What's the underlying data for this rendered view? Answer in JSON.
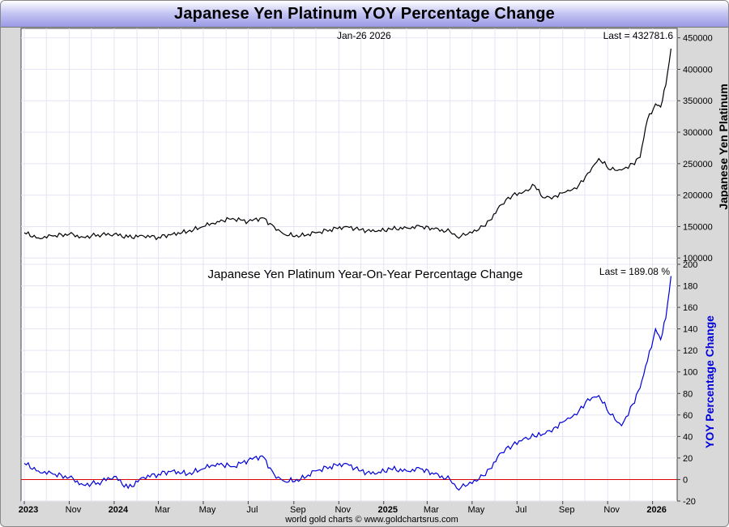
{
  "title": "Japanese Yen Platinum YOY Percentage Change",
  "footer": "world gold charts © www.goldchartsrus.com",
  "colors": {
    "price_line": "#000000",
    "yoy_line": "#0000dd",
    "zero_line": "#dd0000",
    "yoy_axis_label": "#0000dd",
    "grid": "#e4e4f4",
    "title_grad_end": "#9a9ae6"
  },
  "chart_data": [
    {
      "type": "line",
      "title": "",
      "date_label": "Jan-26  2026",
      "last_label": "Last = 432781.6",
      "ylabel": "Japanese Yen Platinum",
      "xlabel": "",
      "ylim": [
        90000,
        465000
      ],
      "yticks": [
        "450000",
        "400000",
        "350000",
        "300000",
        "250000",
        "200000",
        "150000",
        "100000"
      ],
      "yticks_values": [
        450000,
        400000,
        350000,
        300000,
        250000,
        200000,
        150000,
        100000
      ],
      "grid": true,
      "x_tick_labels": [
        "2023",
        "Nov",
        "2024",
        "Mar",
        "May",
        "Jul",
        "Sep",
        "Nov",
        "2025",
        "Mar",
        "May",
        "Jul",
        "Sep",
        "Nov",
        "2026"
      ],
      "x_tick_dates": [
        "2023-09-01",
        "2023-11-01",
        "2024-01-01",
        "2024-03-01",
        "2024-05-01",
        "2024-07-01",
        "2024-09-01",
        "2024-11-01",
        "2025-01-01",
        "2025-03-01",
        "2025-05-01",
        "2025-07-01",
        "2025-09-01",
        "2025-11-01",
        "2026-01-01"
      ],
      "series": [
        {
          "name": "",
          "x": [
            "2023-09-01",
            "2023-09-20",
            "2023-10-10",
            "2023-11-01",
            "2023-11-20",
            "2023-12-10",
            "2024-01-01",
            "2024-01-20",
            "2024-02-10",
            "2024-03-01",
            "2024-03-20",
            "2024-04-10",
            "2024-05-01",
            "2024-05-20",
            "2024-06-10",
            "2024-07-01",
            "2024-07-20",
            "2024-08-05",
            "2024-08-20",
            "2024-09-10",
            "2024-10-01",
            "2024-10-20",
            "2024-11-10",
            "2024-12-01",
            "2024-12-20",
            "2025-01-10",
            "2025-02-01",
            "2025-02-20",
            "2025-03-10",
            "2025-04-01",
            "2025-04-10",
            "2025-04-25",
            "2025-05-10",
            "2025-05-25",
            "2025-06-10",
            "2025-06-25",
            "2025-07-10",
            "2025-07-25",
            "2025-08-05",
            "2025-08-20",
            "2025-09-05",
            "2025-09-20",
            "2025-10-05",
            "2025-10-20",
            "2025-11-05",
            "2025-11-20",
            "2025-12-05",
            "2025-12-15",
            "2025-12-25",
            "2026-01-05",
            "2026-01-12",
            "2026-01-19",
            "2026-01-26"
          ],
          "values": [
            140000,
            132000,
            135000,
            138000,
            133000,
            137000,
            138000,
            133000,
            135000,
            133000,
            138000,
            142000,
            150000,
            158000,
            163000,
            158000,
            164000,
            150000,
            137000,
            135000,
            140000,
            145000,
            150000,
            145000,
            142000,
            146000,
            148000,
            150000,
            146000,
            142000,
            134000,
            138000,
            145000,
            160000,
            185000,
            200000,
            205000,
            215000,
            196000,
            198000,
            205000,
            210000,
            235000,
            258000,
            240000,
            240000,
            250000,
            260000,
            320000,
            345000,
            340000,
            375000,
            432781.6
          ]
        }
      ]
    },
    {
      "type": "line",
      "title": "Japanese Yen Platinum Year-On-Year Percentage Change",
      "last_label": "Last =  189.08 %",
      "ylabel": "YOY Percentage Change",
      "xlabel": "",
      "ylim": [
        -20,
        200
      ],
      "yticks": [
        "200",
        "180",
        "160",
        "140",
        "120",
        "100",
        "80",
        "60",
        "40",
        "20",
        "0",
        "-20"
      ],
      "yticks_values": [
        200,
        180,
        160,
        140,
        120,
        100,
        80,
        60,
        40,
        20,
        0,
        -20
      ],
      "grid": true,
      "reference_line": 0,
      "series": [
        {
          "name": "",
          "x": [
            "2023-09-01",
            "2023-09-20",
            "2023-10-10",
            "2023-11-01",
            "2023-11-20",
            "2023-12-10",
            "2024-01-01",
            "2024-01-20",
            "2024-02-10",
            "2024-03-01",
            "2024-03-20",
            "2024-04-10",
            "2024-05-01",
            "2024-05-20",
            "2024-06-10",
            "2024-07-01",
            "2024-07-20",
            "2024-08-05",
            "2024-08-20",
            "2024-09-10",
            "2024-10-01",
            "2024-10-20",
            "2024-11-10",
            "2024-12-01",
            "2024-12-20",
            "2025-01-10",
            "2025-02-01",
            "2025-02-20",
            "2025-03-10",
            "2025-04-01",
            "2025-04-10",
            "2025-04-25",
            "2025-05-10",
            "2025-05-25",
            "2025-06-10",
            "2025-06-25",
            "2025-07-10",
            "2025-07-25",
            "2025-08-05",
            "2025-08-20",
            "2025-09-05",
            "2025-09-20",
            "2025-10-05",
            "2025-10-20",
            "2025-11-05",
            "2025-11-20",
            "2025-12-05",
            "2025-12-15",
            "2025-12-25",
            "2026-01-05",
            "2026-01-12",
            "2026-01-19",
            "2026-01-26"
          ],
          "values": [
            15,
            8,
            5,
            2,
            -5,
            -3,
            3,
            -8,
            2,
            5,
            8,
            5,
            10,
            15,
            12,
            18,
            22,
            5,
            -2,
            0,
            8,
            12,
            15,
            8,
            5,
            10,
            8,
            10,
            5,
            0,
            -8,
            -5,
            0,
            10,
            25,
            32,
            38,
            40,
            42,
            48,
            55,
            60,
            75,
            78,
            60,
            50,
            70,
            85,
            110,
            140,
            130,
            150,
            189.08
          ]
        }
      ]
    }
  ]
}
